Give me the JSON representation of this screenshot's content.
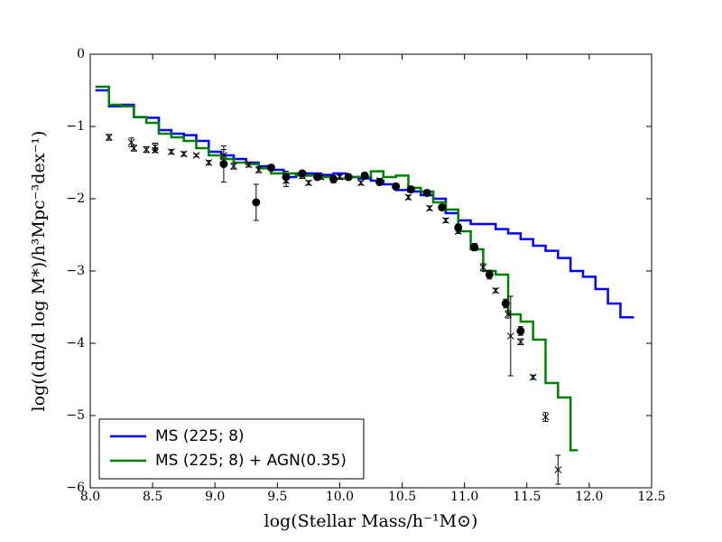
{
  "chart_data": {
    "type": "step",
    "xlabel": "log(Stellar Mass/h⁻¹M⊙)",
    "ylabel": "log((dn/d log M*)/h³Mpc⁻³dex⁻¹)",
    "xlim": [
      8.0,
      12.5
    ],
    "ylim": [
      -6,
      0
    ],
    "xticks": [
      {
        "value": 8.0,
        "label": "8.0"
      },
      {
        "value": 8.5,
        "label": "8.5"
      },
      {
        "value": 9.0,
        "label": "9.0"
      },
      {
        "value": 9.5,
        "label": "9.5"
      },
      {
        "value": 10.0,
        "label": "10.0"
      },
      {
        "value": 10.5,
        "label": "10.5"
      },
      {
        "value": 11.0,
        "label": "11.0"
      },
      {
        "value": 11.5,
        "label": "11.5"
      },
      {
        "value": 12.0,
        "label": "12.0"
      },
      {
        "value": 12.5,
        "label": "12.5"
      }
    ],
    "yticks": [
      0,
      {
        "value": -1,
        "label": "−1"
      },
      {
        "value": -2,
        "label": "−2"
      },
      {
        "value": -3,
        "label": "−3"
      },
      {
        "value": -4,
        "label": "−4"
      },
      {
        "value": -5,
        "label": "−5"
      },
      {
        "value": -6,
        "label": "−6"
      }
    ],
    "legend": "lower left",
    "series": [
      {
        "name": "MS (225; 8)",
        "color": "#0000ff",
        "kind": "step",
        "bins": [
          8.05,
          8.15,
          8.25,
          8.35,
          8.45,
          8.55,
          8.65,
          8.75,
          8.85,
          8.95,
          9.05,
          9.15,
          9.25,
          9.35,
          9.45,
          9.55,
          9.65,
          9.75,
          9.85,
          9.95,
          10.05,
          10.15,
          10.25,
          10.35,
          10.45,
          10.55,
          10.65,
          10.75,
          10.85,
          10.95,
          11.05,
          11.15,
          11.25,
          11.35,
          11.45,
          11.55,
          11.65,
          11.75,
          11.85,
          11.95,
          12.05,
          12.15,
          12.25,
          12.35
        ],
        "values": [
          -0.5,
          -0.72,
          -0.7,
          -0.87,
          -0.88,
          -1.05,
          -1.1,
          -1.12,
          -1.2,
          -1.35,
          -1.4,
          -1.45,
          -1.5,
          -1.55,
          -1.6,
          -1.7,
          -1.65,
          -1.65,
          -1.67,
          -1.65,
          -1.7,
          -1.72,
          -1.75,
          -1.8,
          -1.88,
          -1.9,
          -1.95,
          -2.0,
          -2.2,
          -2.3,
          -2.35,
          -2.35,
          -2.42,
          -2.48,
          -2.56,
          -2.65,
          -2.72,
          -2.82,
          -3.0,
          -3.08,
          -3.25,
          -3.45,
          -3.64
        ]
      },
      {
        "name": "MS (225; 8) + AGN(0.35)",
        "color": "#008000",
        "kind": "step",
        "bins": [
          8.05,
          8.15,
          8.25,
          8.35,
          8.45,
          8.55,
          8.65,
          8.75,
          8.85,
          8.95,
          9.05,
          9.15,
          9.25,
          9.35,
          9.45,
          9.55,
          9.65,
          9.75,
          9.85,
          9.95,
          10.05,
          10.15,
          10.25,
          10.35,
          10.45,
          10.55,
          10.65,
          10.75,
          10.85,
          10.95,
          11.05,
          11.15,
          11.25,
          11.35,
          11.45,
          11.55,
          11.65,
          11.75,
          11.85,
          11.9
        ],
        "values": [
          -0.45,
          -0.7,
          -0.72,
          -0.87,
          -0.95,
          -1.1,
          -1.15,
          -1.2,
          -1.3,
          -1.4,
          -1.45,
          -1.5,
          -1.52,
          -1.58,
          -1.65,
          -1.65,
          -1.68,
          -1.68,
          -1.7,
          -1.72,
          -1.7,
          -1.7,
          -1.62,
          -1.7,
          -1.68,
          -1.85,
          -1.9,
          -2.05,
          -2.15,
          -2.45,
          -2.7,
          -3.0,
          -3.05,
          -3.6,
          -3.7,
          -3.95,
          -4.55,
          -4.75,
          -5.48
        ]
      },
      {
        "color": "#000000",
        "kind": "circle",
        "x": [
          9.07,
          9.33,
          9.45,
          9.57,
          9.7,
          9.82,
          9.95,
          10.07,
          10.2,
          10.32,
          10.45,
          10.57,
          10.7,
          10.82,
          10.95,
          11.08,
          11.2,
          11.33,
          11.45
        ],
        "values": [
          -1.52,
          -2.05,
          -1.57,
          -1.7,
          -1.65,
          -1.7,
          -1.73,
          -1.7,
          -1.68,
          -1.77,
          -1.83,
          -1.87,
          -1.92,
          -2.12,
          -2.4,
          -2.67,
          -3.05,
          -3.45,
          -3.83
        ],
        "errors": [
          0.25,
          0.25,
          0.04,
          0.08,
          0.04,
          0.04,
          0.05,
          0.04,
          0.04,
          0.04,
          0.04,
          0.04,
          0.04,
          0.04,
          0.05,
          0.05,
          0.06,
          0.06,
          0.06
        ]
      },
      {
        "color": "#000000",
        "kind": "cross",
        "x": [
          8.15,
          8.33,
          8.35,
          8.45,
          8.52,
          8.52,
          8.65,
          8.75,
          8.85,
          8.95,
          9.07,
          9.15,
          9.27,
          9.35,
          9.57,
          9.7,
          9.75,
          9.85,
          10.0,
          10.17,
          10.32,
          10.55,
          10.72,
          10.85,
          10.95,
          11.15,
          11.25,
          11.35,
          11.37,
          11.45,
          11.55,
          11.65,
          11.75
        ],
        "values": [
          -1.15,
          -1.22,
          -1.3,
          -1.32,
          -1.28,
          -1.33,
          -1.35,
          -1.38,
          -1.4,
          -1.5,
          -1.4,
          -1.55,
          -1.53,
          -1.6,
          -1.75,
          -1.68,
          -1.78,
          -1.7,
          -1.7,
          -1.78,
          -1.75,
          -1.98,
          -2.13,
          -2.3,
          -2.45,
          -2.95,
          -3.27,
          -3.6,
          -3.9,
          -3.98,
          -4.47,
          -5.02,
          -5.75
        ],
        "errors": [
          0.04,
          0.06,
          0.04,
          0.04,
          0.05,
          0.03,
          0.03,
          0.03,
          0.02,
          0.03,
          0.08,
          0.04,
          0.03,
          0.04,
          0.08,
          0.04,
          0.03,
          0.03,
          0.03,
          0.03,
          0.03,
          0.03,
          0.03,
          0.03,
          0.03,
          0.05,
          0.03,
          0.05,
          0.55,
          0.04,
          0.03,
          0.06,
          0.2
        ]
      }
    ]
  }
}
